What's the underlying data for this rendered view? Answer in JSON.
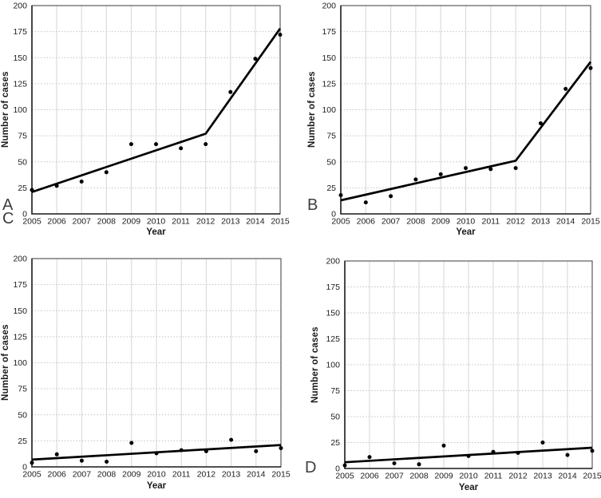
{
  "figure": {
    "background": "#ffffff",
    "frame_color": "#5a5a5a",
    "axis_color": "#222222",
    "vgrid_color": "#d6d6d6",
    "hgrid_color": "#c2c2c2",
    "tick_text_color": "#1c1c1c"
  },
  "chart_data": [
    {
      "type": "scatter",
      "panel_label": "A",
      "title": "",
      "xlabel": "Year",
      "ylabel": "Number of cases",
      "x": [
        2005,
        2006,
        2007,
        2008,
        2009,
        2010,
        2011,
        2012,
        2013,
        2014,
        2015
      ],
      "values": [
        23,
        27,
        31,
        40,
        67,
        67,
        63,
        67,
        117,
        149,
        172
      ],
      "trend_line": [
        [
          2005,
          21
        ],
        [
          2012,
          77
        ],
        [
          2015,
          178
        ]
      ],
      "ylim": [
        0,
        200
      ],
      "yticks": [
        0,
        25,
        50,
        75,
        100,
        125,
        150,
        175,
        200
      ],
      "grid": true,
      "point_color": "#000000",
      "trend_color": "#000000"
    },
    {
      "type": "scatter",
      "panel_label": "B",
      "title": "",
      "xlabel": "Year",
      "ylabel": "Number of cases",
      "x": [
        2005,
        2006,
        2007,
        2008,
        2009,
        2010,
        2011,
        2012,
        2013,
        2014,
        2015
      ],
      "values": [
        18,
        11,
        17,
        33,
        38,
        44,
        43,
        44,
        87,
        120,
        140
      ],
      "trend_line": [
        [
          2005,
          13
        ],
        [
          2012,
          51
        ],
        [
          2015,
          146
        ]
      ],
      "ylim": [
        0,
        200
      ],
      "yticks": [
        0,
        25,
        50,
        75,
        100,
        125,
        150,
        175,
        200
      ],
      "grid": true,
      "point_color": "#000000",
      "trend_color": "#000000"
    },
    {
      "type": "scatter",
      "panel_label": "C",
      "title": "",
      "xlabel": "Year",
      "ylabel": "Number of cases",
      "x": [
        2005,
        2006,
        2007,
        2008,
        2009,
        2010,
        2011,
        2012,
        2013,
        2014,
        2015
      ],
      "values": [
        4,
        12,
        6,
        5,
        23,
        13,
        16,
        15,
        26,
        15,
        18
      ],
      "trend_line": [
        [
          2005,
          7
        ],
        [
          2015,
          21
        ]
      ],
      "ylim": [
        0,
        200
      ],
      "yticks": [
        0,
        25,
        50,
        75,
        100,
        125,
        150,
        175,
        200
      ],
      "grid": true,
      "point_color": "#000000",
      "trend_color": "#000000"
    },
    {
      "type": "scatter",
      "panel_label": "D",
      "title": "",
      "xlabel": "Year",
      "ylabel": "Number of cases",
      "x": [
        2005,
        2006,
        2007,
        2008,
        2009,
        2010,
        2011,
        2012,
        2013,
        2014,
        2015
      ],
      "values": [
        3,
        11,
        5,
        4,
        22,
        12,
        16,
        15,
        25,
        13,
        17
      ],
      "trend_line": [
        [
          2005,
          6
        ],
        [
          2015,
          20
        ]
      ],
      "ylim": [
        0,
        200
      ],
      "yticks": [
        0,
        25,
        50,
        75,
        100,
        125,
        150,
        175,
        200
      ],
      "grid": true,
      "point_color": "#000000",
      "trend_color": "#000000"
    }
  ]
}
